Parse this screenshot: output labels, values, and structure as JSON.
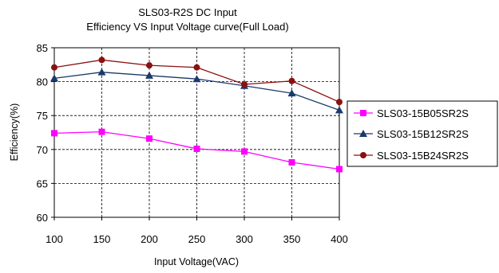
{
  "chart_data": {
    "type": "line",
    "title": "SLS03-R2S   DC Input",
    "subtitle": "Efficiency VS Input Voltage curve(Full Load)",
    "xlabel": "Input Voltage(VAC)",
    "ylabel": "Efficiency(%)",
    "x": [
      100,
      150,
      200,
      250,
      300,
      350,
      400
    ],
    "xlim": [
      100,
      400
    ],
    "ylim": [
      60,
      85
    ],
    "yticks": [
      60,
      65,
      70,
      75,
      80,
      85
    ],
    "grid": "horizontal-dashed",
    "legend_position": "right",
    "series": [
      {
        "name": "SLS03-15B05SR2S",
        "color": "#ff00ff",
        "marker": "square",
        "values": [
          72.4,
          72.6,
          71.6,
          70.1,
          69.7,
          68.1,
          67.1
        ]
      },
      {
        "name": "SLS03-15B12SR2S",
        "color": "#1a3a6b",
        "marker": "triangle",
        "values": [
          80.5,
          81.4,
          80.9,
          80.4,
          79.4,
          78.3,
          75.8
        ]
      },
      {
        "name": "SLS03-15B24SR2S",
        "color": "#8b1010",
        "marker": "circle",
        "values": [
          82.1,
          83.2,
          82.4,
          82.1,
          79.6,
          80.1,
          77.0
        ]
      }
    ]
  }
}
